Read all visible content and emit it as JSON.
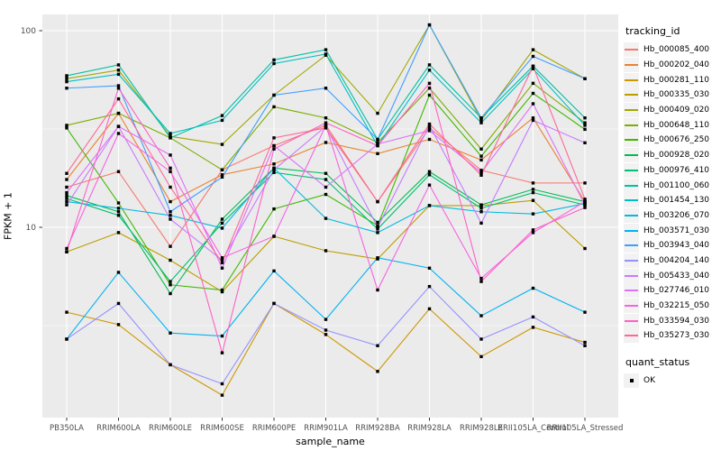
{
  "figure": {
    "xlabel": "sample_name",
    "ylabel": "FPKM + 1"
  },
  "legend": {
    "tracking_title": "tracking_id",
    "quant_title": "quant_status",
    "quant_items": [
      {
        "label": "OK",
        "marker": "black-square"
      }
    ]
  },
  "chart_data": {
    "type": "line",
    "title": "",
    "xlabel": "sample_name",
    "ylabel": "FPKM + 1",
    "y_scale": "log10",
    "y_ticks": [
      10,
      100
    ],
    "y_minor_ticks": [
      3.162,
      31.62
    ],
    "ylim": [
      1.3,
      125
    ],
    "grid": true,
    "legend_position": "right",
    "panel_bg": "#EBEBEB",
    "grid_color": "#FFFFFF",
    "tick_color": "#333333",
    "tick_label_color": "#4D4D4D",
    "point_marker": "black-square",
    "x_categories": [
      "PB350LA",
      "RRIM600LA",
      "RRIM600LE",
      "RRIM600SE",
      "RRIM600PE",
      "RRIM901LA",
      "RRIM928BA",
      "RRIM928LA",
      "RRIM928LE",
      "RRII105LA_Control",
      "RRII105LA_Stressed"
    ],
    "series": [
      {
        "name": "Hb_000085_400",
        "color": "#F8766D",
        "values": [
          16,
          19.2,
          8.0,
          19.6,
          26,
          33,
          13.5,
          32,
          19.5,
          16.8,
          16.8
        ]
      },
      {
        "name": "Hb_000202_040",
        "color": "#EA8331",
        "values": [
          17.5,
          38,
          13.5,
          18.5,
          21,
          27,
          23.7,
          28,
          22,
          36,
          13.5
        ]
      },
      {
        "name": "Hb_000281_110",
        "color": "#CE9700",
        "values": [
          3.7,
          3.2,
          2.0,
          1.4,
          4.1,
          2.85,
          1.85,
          3.85,
          2.2,
          3.1,
          2.6
        ]
      },
      {
        "name": "Hb_000335_030",
        "color": "#BC9D00",
        "values": [
          7.5,
          9.4,
          6.8,
          4.7,
          9.0,
          7.6,
          6.9,
          12.9,
          12.9,
          13.7,
          7.8
        ]
      },
      {
        "name": "Hb_000409_020",
        "color": "#A2A800",
        "values": [
          57,
          63,
          29,
          26.4,
          47,
          75,
          38,
          107,
          35,
          80,
          57
        ]
      },
      {
        "name": "Hb_000648_110",
        "color": "#7CAE00",
        "values": [
          33,
          38,
          28.5,
          19.6,
          41,
          36,
          27,
          51,
          25,
          54,
          34
        ]
      },
      {
        "name": "Hb_000676_250",
        "color": "#3FB800",
        "values": [
          32,
          13.3,
          5.1,
          4.8,
          12.4,
          14.7,
          10.2,
          47,
          23,
          48,
          31.5
        ]
      },
      {
        "name": "Hb_000928_020",
        "color": "#00BC51",
        "values": [
          14.5,
          12,
          4.6,
          11,
          20,
          18.8,
          10.6,
          19.2,
          13,
          15.6,
          13.5
        ]
      },
      {
        "name": "Hb_000976_410",
        "color": "#00C073",
        "values": [
          14,
          11.5,
          5.3,
          10.5,
          19,
          17.5,
          9.8,
          18.5,
          12.5,
          15,
          13
        ]
      },
      {
        "name": "Hb_001100_060",
        "color": "#00C1A2",
        "values": [
          59,
          67,
          28.5,
          37,
          71,
          80,
          28,
          67,
          36,
          66,
          36
        ]
      },
      {
        "name": "Hb_001454_130",
        "color": "#00BFC4",
        "values": [
          55,
          60,
          30,
          35,
          68,
          76,
          26,
          63,
          34,
          64,
          33
        ]
      },
      {
        "name": "Hb_003206_070",
        "color": "#00BAE0",
        "values": [
          13.5,
          12.5,
          11.5,
          9.9,
          20,
          11.1,
          9.4,
          12.9,
          12,
          11.7,
          13.2
        ]
      },
      {
        "name": "Hb_003571_030",
        "color": "#00B2F3",
        "values": [
          2.7,
          5.9,
          2.9,
          2.8,
          6.0,
          3.4,
          7.0,
          6.2,
          3.55,
          4.9,
          3.7
        ]
      },
      {
        "name": "Hb_003943_040",
        "color": "#3F9FFF",
        "values": [
          51,
          52.5,
          12,
          18,
          47,
          51,
          28,
          107,
          36,
          74,
          57
        ]
      },
      {
        "name": "Hb_004204_140",
        "color": "#9591FF",
        "values": [
          2.7,
          4.1,
          2.0,
          1.6,
          4.1,
          3.0,
          2.5,
          5.0,
          2.7,
          3.5,
          2.5
        ]
      },
      {
        "name": "Hb_005433_040",
        "color": "#C77CFF",
        "values": [
          13,
          32.6,
          11,
          6.8,
          19.6,
          32.6,
          10,
          33,
          10.5,
          35,
          26.9
        ]
      },
      {
        "name": "Hb_027746_010",
        "color": "#DE71F9",
        "values": [
          15,
          32.6,
          23.3,
          6.2,
          26,
          16,
          26.5,
          31,
          19,
          42.5,
          13
        ]
      },
      {
        "name": "Hb_032215_050",
        "color": "#F564E3",
        "values": [
          7.8,
          30,
          19.2,
          7.0,
          9.0,
          33,
          4.8,
          16.4,
          5.5,
          9.4,
          13.5
        ]
      },
      {
        "name": "Hb_033594_030",
        "color": "#FF61C7",
        "values": [
          7.5,
          51,
          20,
          2.3,
          25,
          34,
          26,
          54,
          5.3,
          9.7,
          12.6
        ]
      },
      {
        "name": "Hb_035273_030",
        "color": "#FF6797",
        "values": [
          18.8,
          45,
          16,
          6.6,
          28.5,
          32,
          13.5,
          33.5,
          18.4,
          66,
          13.9
        ]
      }
    ]
  }
}
